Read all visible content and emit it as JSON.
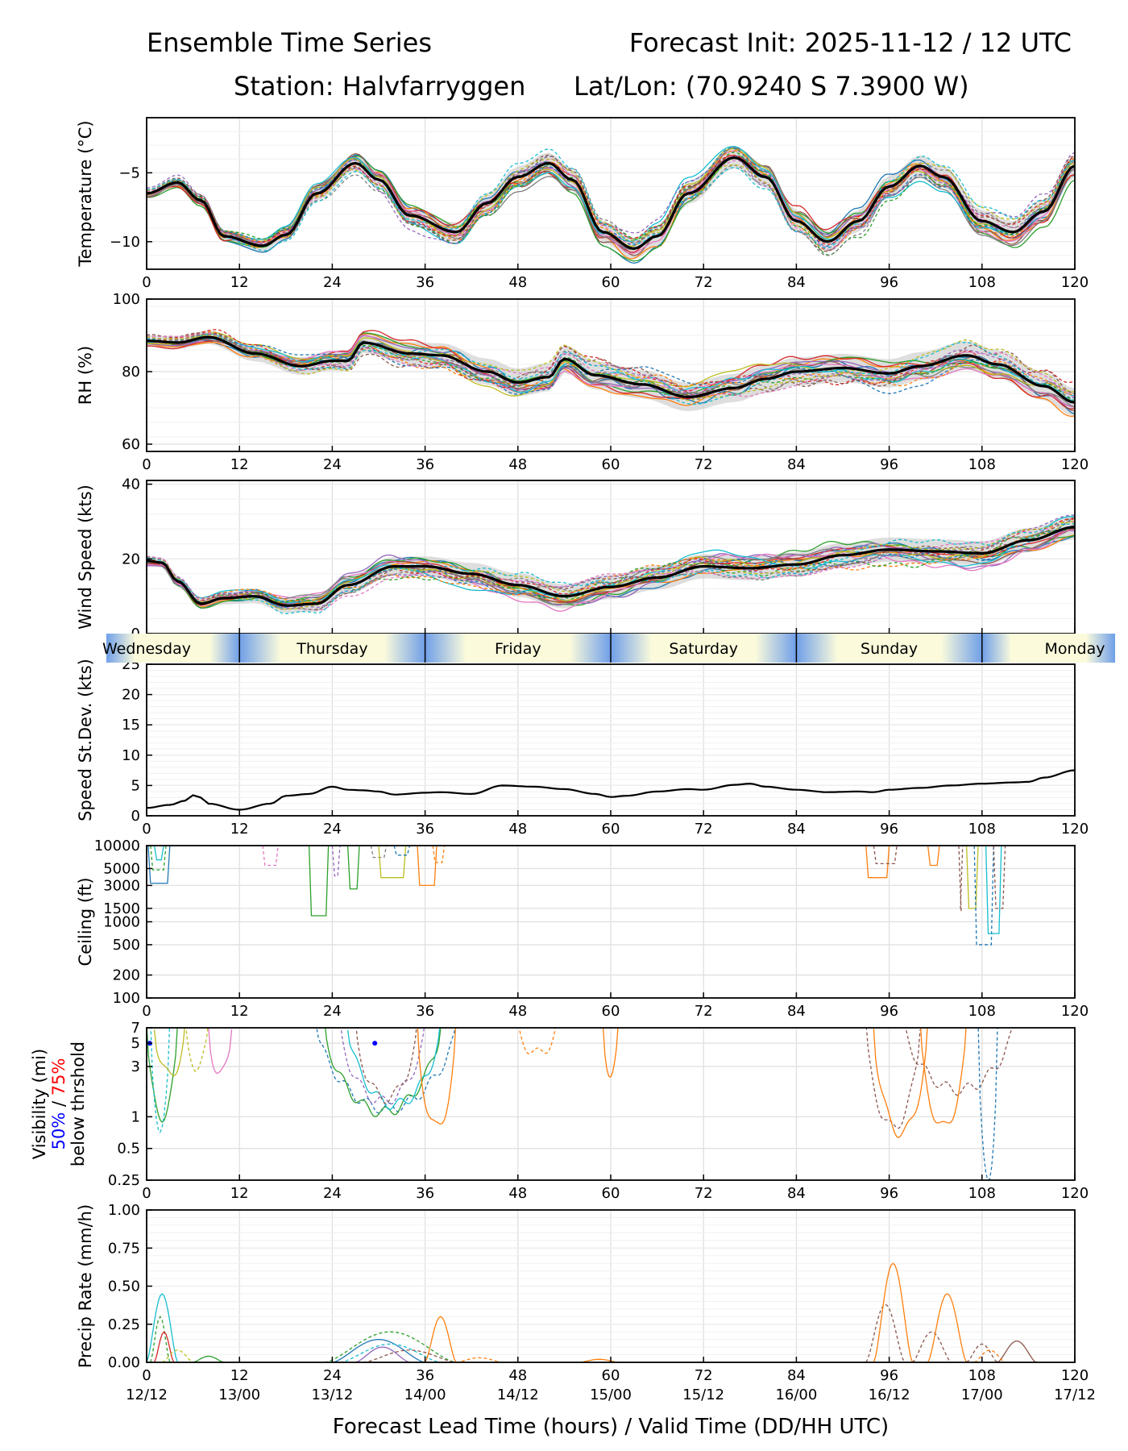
{
  "header": {
    "title_left": "Ensemble Time Series",
    "title_right": "Forecast Init: 2025-11-12 / 12 UTC",
    "station": "Station: Halvfarryggen",
    "latlon": "Lat/Lon: (70.9240 S 7.3900 W)"
  },
  "colors": {
    "members": [
      "#1f77b4",
      "#ff7f0e",
      "#2ca02c",
      "#d62728",
      "#9467bd",
      "#8c564b",
      "#e377c2",
      "#7f7f7f",
      "#bcbd22",
      "#17becf"
    ],
    "mean": "#000000",
    "spread": "#c8c8c8",
    "day_light": "#fbfbdc",
    "day_dark": "#6f9fe8",
    "vis50": "#0000ff",
    "vis75": "#ff0000"
  },
  "chart_data": {
    "type": "line",
    "x_range": [
      0,
      120
    ],
    "x_ticks": [
      0,
      12,
      24,
      36,
      48,
      60,
      72,
      84,
      96,
      108,
      120
    ],
    "valid_time_labels": [
      "12/12",
      "13/00",
      "13/12",
      "14/00",
      "14/12",
      "15/00",
      "15/12",
      "16/00",
      "16/12",
      "17/00",
      "17/12"
    ],
    "xlabel": "Forecast Lead Time (hours) / Valid Time (DD/HH UTC)",
    "day_labels": [
      "Wednesday",
      "Thursday",
      "Friday",
      "Saturday",
      "Sunday",
      "Monday"
    ],
    "panels": [
      {
        "id": "temperature",
        "ylabel": "Temperature (°C)",
        "ylim": [
          -12,
          -1
        ],
        "yticks": [
          -10,
          -5
        ],
        "ytick_labels": [
          "−10",
          "−5"
        ],
        "mean": [
          [
            0,
            -6.5
          ],
          [
            4,
            -5.7
          ],
          [
            7,
            -7.0
          ],
          [
            10,
            -9.6
          ],
          [
            15,
            -10.3
          ],
          [
            18,
            -9.5
          ],
          [
            22,
            -6.5
          ],
          [
            27,
            -4.3
          ],
          [
            30,
            -5.5
          ],
          [
            34,
            -8.1
          ],
          [
            40,
            -9.3
          ],
          [
            44,
            -7.2
          ],
          [
            48,
            -5.3
          ],
          [
            52,
            -4.3
          ],
          [
            55,
            -5.5
          ],
          [
            59,
            -9.3
          ],
          [
            63,
            -10.5
          ],
          [
            66,
            -9.6
          ],
          [
            70,
            -6.5
          ],
          [
            76,
            -3.9
          ],
          [
            80,
            -5.3
          ],
          [
            84,
            -8.5
          ],
          [
            88,
            -10.0
          ],
          [
            92,
            -8.5
          ],
          [
            96,
            -6.0
          ],
          [
            100,
            -4.5
          ],
          [
            103,
            -5.3
          ],
          [
            108,
            -8.5
          ],
          [
            112,
            -9.3
          ],
          [
            116,
            -7.8
          ],
          [
            120,
            -4.5
          ]
        ],
        "spread_width": 0.6
      },
      {
        "id": "rh",
        "ylabel": "RH (%)",
        "ylim": [
          58,
          100
        ],
        "yticks": [
          60,
          80,
          100
        ],
        "ytick_labels": [
          "60",
          "80",
          "100"
        ],
        "mean": [
          [
            0,
            88.5
          ],
          [
            4,
            88
          ],
          [
            8,
            89.5
          ],
          [
            14,
            85
          ],
          [
            20,
            81.5
          ],
          [
            24,
            83
          ],
          [
            26,
            83
          ],
          [
            28,
            88
          ],
          [
            34,
            85
          ],
          [
            38,
            84.5
          ],
          [
            44,
            80
          ],
          [
            48,
            77
          ],
          [
            52,
            78.5
          ],
          [
            54,
            83.5
          ],
          [
            58,
            79
          ],
          [
            64,
            76.5
          ],
          [
            70,
            73
          ],
          [
            76,
            75.5
          ],
          [
            80,
            78
          ],
          [
            84,
            80
          ],
          [
            90,
            81
          ],
          [
            96,
            79.5
          ],
          [
            100,
            81.5
          ],
          [
            106,
            84.5
          ],
          [
            110,
            82
          ],
          [
            116,
            76
          ],
          [
            120,
            71.5
          ]
        ],
        "spread_width": 3
      },
      {
        "id": "wind_speed",
        "ylabel": "Wind Speed (kts)",
        "ylim": [
          0,
          41
        ],
        "yticks": [
          0,
          20,
          40
        ],
        "ytick_labels": [
          "0",
          "20",
          "40"
        ],
        "mean": [
          [
            0,
            19.5
          ],
          [
            2,
            19
          ],
          [
            4,
            14
          ],
          [
            7,
            8
          ],
          [
            10,
            9.5
          ],
          [
            14,
            10
          ],
          [
            18,
            7.5
          ],
          [
            22,
            8
          ],
          [
            26,
            13
          ],
          [
            32,
            18
          ],
          [
            36,
            18
          ],
          [
            42,
            16
          ],
          [
            48,
            13
          ],
          [
            54,
            10
          ],
          [
            60,
            12.5
          ],
          [
            66,
            15
          ],
          [
            72,
            18
          ],
          [
            78,
            17.5
          ],
          [
            84,
            18.5
          ],
          [
            90,
            21
          ],
          [
            96,
            22.5
          ],
          [
            102,
            22
          ],
          [
            108,
            21.5
          ],
          [
            114,
            25
          ],
          [
            120,
            28.5
          ]
        ],
        "spread_width": 2.5
      },
      {
        "id": "speed_stdev",
        "ylabel": "Speed St.Dev. (kts)",
        "ylim": [
          0,
          25
        ],
        "yticks": [
          0,
          5,
          10,
          15,
          20,
          25
        ],
        "ytick_labels": [
          "0",
          "5",
          "10",
          "15",
          "20",
          "25"
        ],
        "mean": [
          [
            0,
            1.3
          ],
          [
            3,
            1.8
          ],
          [
            5,
            2.5
          ],
          [
            6,
            3.4
          ],
          [
            7,
            3
          ],
          [
            8,
            2
          ],
          [
            12,
            1
          ],
          [
            16,
            2
          ],
          [
            18,
            3.3
          ],
          [
            21,
            3.6
          ],
          [
            24,
            4.8
          ],
          [
            26,
            4.3
          ],
          [
            28,
            4.2
          ],
          [
            30,
            4
          ],
          [
            32,
            3.5
          ],
          [
            36,
            3.8
          ],
          [
            38,
            3.9
          ],
          [
            42,
            3.6
          ],
          [
            46,
            5
          ],
          [
            50,
            4.8
          ],
          [
            54,
            4.4
          ],
          [
            58,
            3.6
          ],
          [
            60,
            3.1
          ],
          [
            62,
            3.3
          ],
          [
            66,
            4
          ],
          [
            70,
            4.4
          ],
          [
            72,
            4.3
          ],
          [
            76,
            5.1
          ],
          [
            78,
            5.3
          ],
          [
            80,
            4.8
          ],
          [
            84,
            4.3
          ],
          [
            88,
            3.9
          ],
          [
            92,
            4.0
          ],
          [
            94,
            3.9
          ],
          [
            96,
            4.3
          ],
          [
            100,
            4.6
          ],
          [
            104,
            5
          ],
          [
            108,
            5.3
          ],
          [
            112,
            5.5
          ],
          [
            114,
            5.6
          ],
          [
            116,
            6.3
          ],
          [
            120,
            7.5
          ]
        ]
      },
      {
        "id": "ceiling",
        "ylabel": "Ceiling (ft)",
        "scale": "log",
        "ylim": [
          100,
          10000
        ],
        "yticks": [
          100,
          200,
          500,
          1000,
          1500,
          3000,
          5000,
          10000
        ],
        "ytick_labels": [
          "100",
          "200",
          "500",
          "1000",
          "1500",
          "3000",
          "5000",
          "10000"
        ]
      },
      {
        "id": "visibility",
        "ylabel": "Visibility (mi)",
        "scale": "log",
        "legend": [
          "50%",
          "/",
          "75%",
          "below thrshold"
        ],
        "ylim": [
          0.25,
          7
        ],
        "yticks": [
          0.25,
          0.5,
          1,
          3,
          5,
          7
        ],
        "ytick_labels": [
          "0.25",
          "0.5",
          "1",
          "3",
          "5",
          "7"
        ]
      },
      {
        "id": "precip",
        "ylabel": "Precip Rate (mm/h)",
        "ylim": [
          0,
          1.0
        ],
        "yticks": [
          0,
          0.25,
          0.5,
          0.75,
          1.0
        ],
        "ytick_labels": [
          "0.00",
          "0.25",
          "0.50",
          "0.75",
          "1.00"
        ]
      }
    ]
  }
}
